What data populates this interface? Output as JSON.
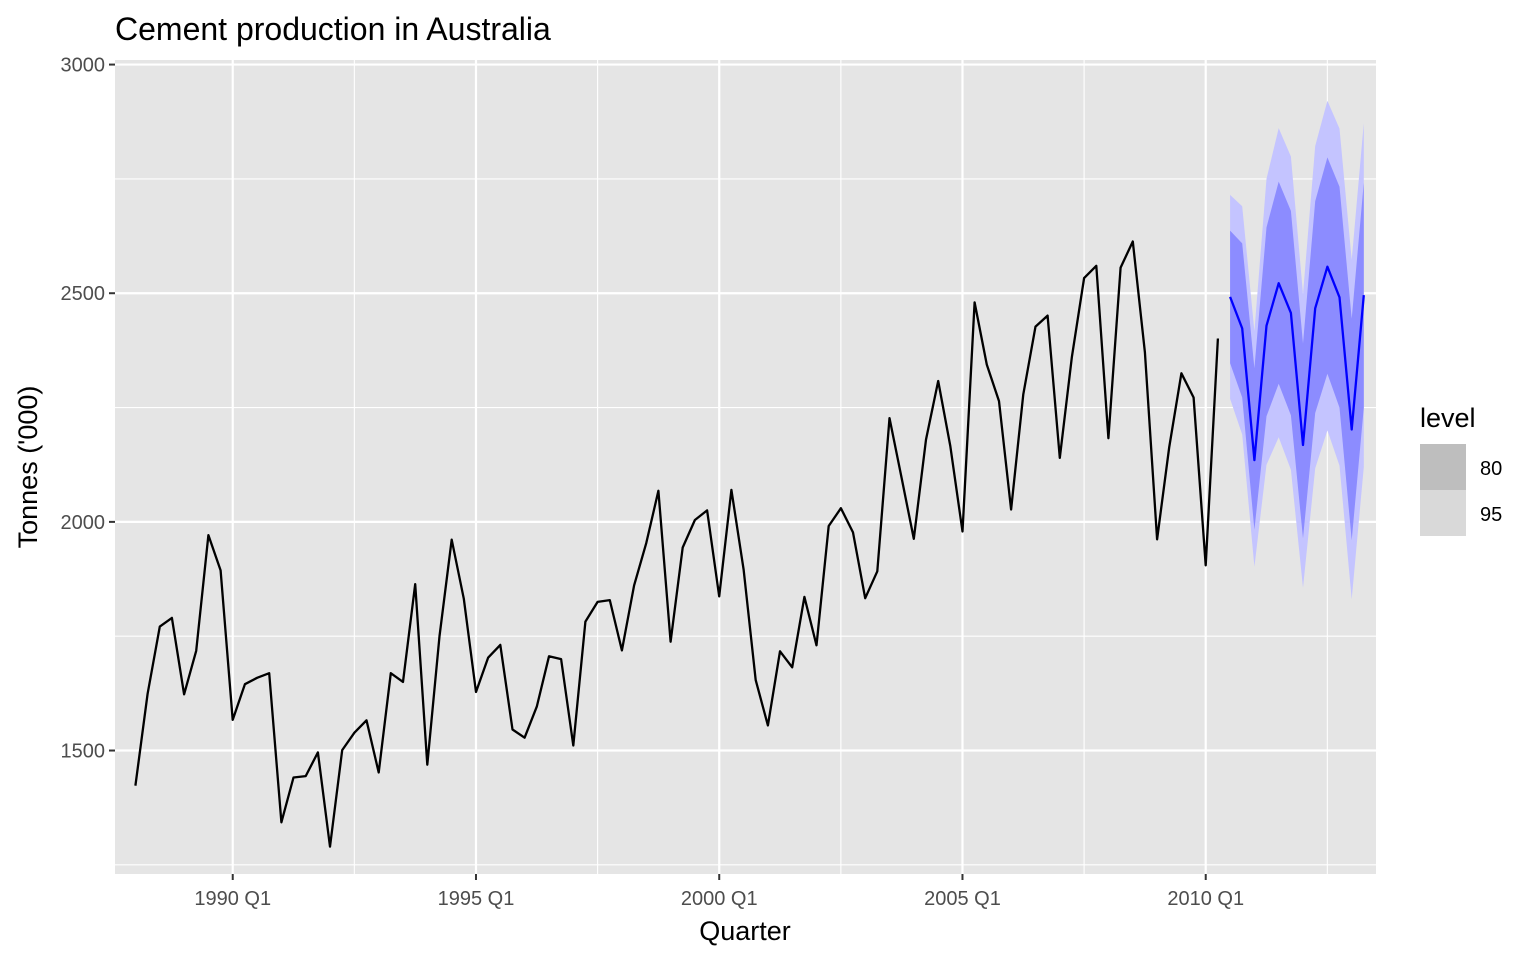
{
  "chart_data": {
    "type": "line",
    "title": "Cement production in Australia",
    "xlabel": "Quarter",
    "ylabel": "Tonnes ('000)",
    "ylim": [
      1230,
      3010
    ],
    "xlim": [
      1987.58,
      2013.5
    ],
    "yticks": [
      1500,
      2000,
      2500,
      3000
    ],
    "xticks": [
      {
        "value": 1990.0,
        "label": "1990 Q1"
      },
      {
        "value": 1995.0,
        "label": "1995 Q1"
      },
      {
        "value": 2000.0,
        "label": "2000 Q1"
      },
      {
        "value": 2005.0,
        "label": "2005 Q1"
      },
      {
        "value": 2010.0,
        "label": "2010 Q1"
      }
    ],
    "grid": true,
    "legend": {
      "title": "level",
      "position": "right",
      "items": [
        {
          "label": "80",
          "color": "#bebebe"
        },
        {
          "label": "95",
          "color": "#d9d9d9"
        }
      ]
    },
    "colors": {
      "history": "#000000",
      "forecast": "#0000ff",
      "band80": "#8c8cff",
      "band95": "#c4c4ff",
      "panel": "#e5e5e5",
      "grid": "#ffffff"
    },
    "series": [
      {
        "x_start": "1988 Q1",
        "values": [
          1423,
          1624,
          1771,
          1790,
          1623,
          1718,
          1971,
          1894,
          1567,
          1645,
          1659,
          1669,
          1343,
          1441,
          1444,
          1496,
          1290,
          1501,
          1539,
          1566,
          1452,
          1669,
          1650,
          1864,
          1469,
          1750,
          1961,
          1832,
          1628,
          1703,
          1731,
          1546,
          1528,
          1596,
          1706,
          1700,
          1511,
          1782,
          1825,
          1829,
          1719,
          1861,
          1954,
          2068,
          1738,
          1944,
          2004,
          2025,
          1837,
          2070,
          1896,
          1654,
          1555,
          1717,
          1682,
          1836,
          1730,
          1991,
          2030,
          1977,
          1833,
          1892,
          2227,
          2095,
          1963,
          2180,
          2308,
          2166,
          1979,
          2480,
          2344,
          2264,
          2027,
          2279,
          2427,
          2451,
          2140,
          2361,
          2533,
          2560,
          2183,
          2556,
          2613,
          2371,
          1962,
          2163,
          2325,
          2272,
          1905,
          2401
        ]
      },
      {
        "name": "Forecast",
        "x_start": "2010 Q3",
        "values": [
          2492,
          2423,
          2135,
          2429,
          2522,
          2457,
          2168,
          2467,
          2558,
          2491,
          2202,
          2496
        ],
        "lo80": [
          2347,
          2272,
          1983,
          2231,
          2302,
          2233,
          1964,
          2238,
          2324,
          2250,
          1960,
          2250
        ],
        "hi80": [
          2637,
          2609,
          2336,
          2644,
          2744,
          2680,
          2390,
          2701,
          2797,
          2733,
          2444,
          2742
        ],
        "lo95": [
          2269,
          2191,
          1902,
          2125,
          2185,
          2114,
          1856,
          2117,
          2200,
          2123,
          1831,
          2120
        ],
        "hi95": [
          2715,
          2690,
          2417,
          2750,
          2861,
          2799,
          2498,
          2822,
          2921,
          2860,
          2573,
          2872
        ]
      }
    ]
  }
}
